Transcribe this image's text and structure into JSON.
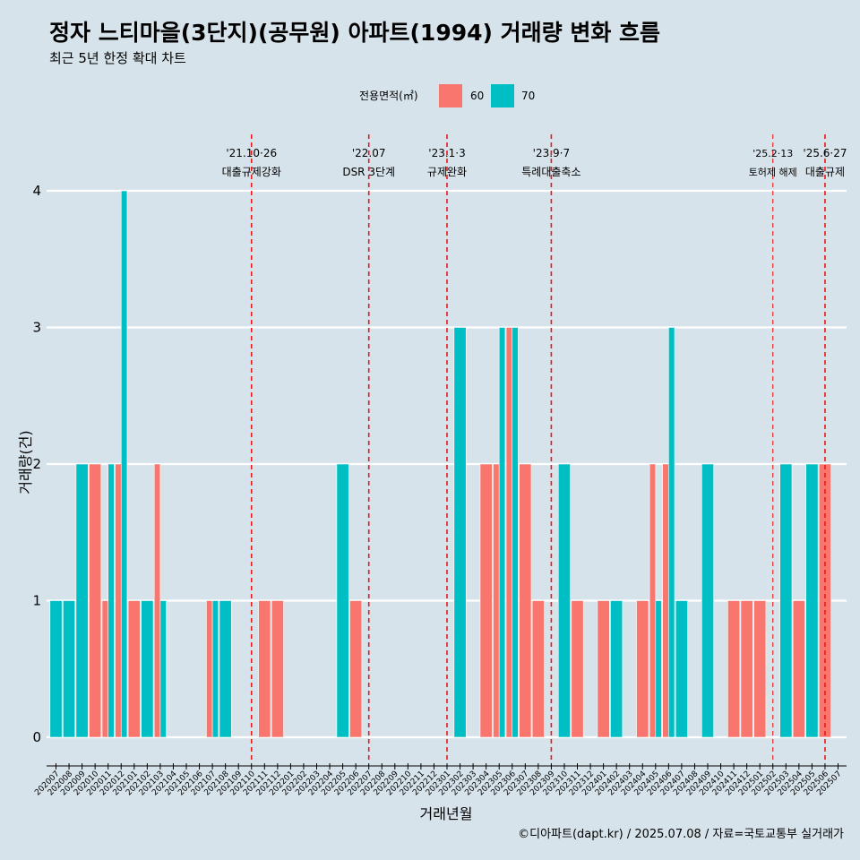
{
  "chart_data": {
    "type": "bar",
    "title": "정자 느티마을(3단지)(공무원) 아파트(1994) 거래량 변화 흐름",
    "subtitle": "최근 5년 한정 확대 차트",
    "xlabel": "거래년월",
    "ylabel": "거래량(건)",
    "ylim": [
      -0.18,
      4.42
    ],
    "yticks": [
      0,
      1,
      2,
      3,
      4
    ],
    "legend": {
      "title": "전용면적(㎡)",
      "position": "top",
      "entries": [
        {
          "label": "60",
          "color": "#f8766d"
        },
        {
          "label": "70",
          "color": "#00bfc4"
        }
      ]
    },
    "categories": [
      "202007",
      "202008",
      "202009",
      "202010",
      "202011",
      "202012",
      "202101",
      "202102",
      "202103",
      "202104",
      "202105",
      "202106",
      "202107",
      "202108",
      "202109",
      "202110",
      "202111",
      "202112",
      "202201",
      "202202",
      "202203",
      "202204",
      "202205",
      "202206",
      "202207",
      "202208",
      "202209",
      "202210",
      "202211",
      "202212",
      "202301",
      "202302",
      "202303",
      "202304",
      "202305",
      "202306",
      "202307",
      "202308",
      "202309",
      "202310",
      "202311",
      "202312",
      "202401",
      "202402",
      "202403",
      "202404",
      "202405",
      "202406",
      "202407",
      "202408",
      "202409",
      "202410",
      "202411",
      "202412",
      "202501",
      "202502",
      "202503",
      "202504",
      "202505",
      "202506",
      "202507"
    ],
    "series": [
      {
        "name": "60",
        "color": "#f8766d",
        "values": [
          0,
          0,
          0,
          2,
          1,
          2,
          1,
          0,
          2,
          0,
          0,
          0,
          1,
          0,
          0,
          0,
          1,
          1,
          0,
          0,
          0,
          0,
          0,
          1,
          0,
          0,
          0,
          0,
          0,
          0,
          0,
          0,
          0,
          2,
          2,
          3,
          2,
          1,
          0,
          0,
          1,
          0,
          1,
          0,
          0,
          1,
          2,
          2,
          0,
          0,
          0,
          0,
          1,
          1,
          1,
          0,
          0,
          1,
          0,
          2,
          0
        ]
      },
      {
        "name": "70",
        "color": "#00bfc4",
        "values": [
          1,
          1,
          2,
          0,
          2,
          4,
          0,
          1,
          1,
          0,
          0,
          0,
          1,
          1,
          0,
          0,
          0,
          0,
          0,
          0,
          0,
          0,
          2,
          0,
          0,
          0,
          0,
          0,
          0,
          0,
          0,
          3,
          0,
          0,
          3,
          3,
          0,
          0,
          0,
          2,
          0,
          0,
          0,
          1,
          0,
          0,
          1,
          3,
          1,
          0,
          2,
          0,
          0,
          0,
          0,
          0,
          2,
          0,
          2,
          0,
          0
        ]
      }
    ],
    "events": [
      {
        "position": 15.0,
        "date": "'21.10·26",
        "name": "대출규제강화"
      },
      {
        "position": 24.0,
        "date": "'22.07",
        "name": "DSR 3단계"
      },
      {
        "position": 30.0,
        "date": "'23.1·3",
        "name": "규제완화"
      },
      {
        "position": 38.0,
        "date": "'23.9·7",
        "name": "특례대출축소"
      },
      {
        "position": 55.0,
        "date": "'25.2·13",
        "name": "토허제 해제",
        "minor": true
      },
      {
        "position": 59.0,
        "date": "'25.6·27",
        "name": "대출규제"
      }
    ],
    "caption": "©디아파트(dapt.kr) / 2025.07.08 / 자료=국토교통부 실거래가"
  }
}
